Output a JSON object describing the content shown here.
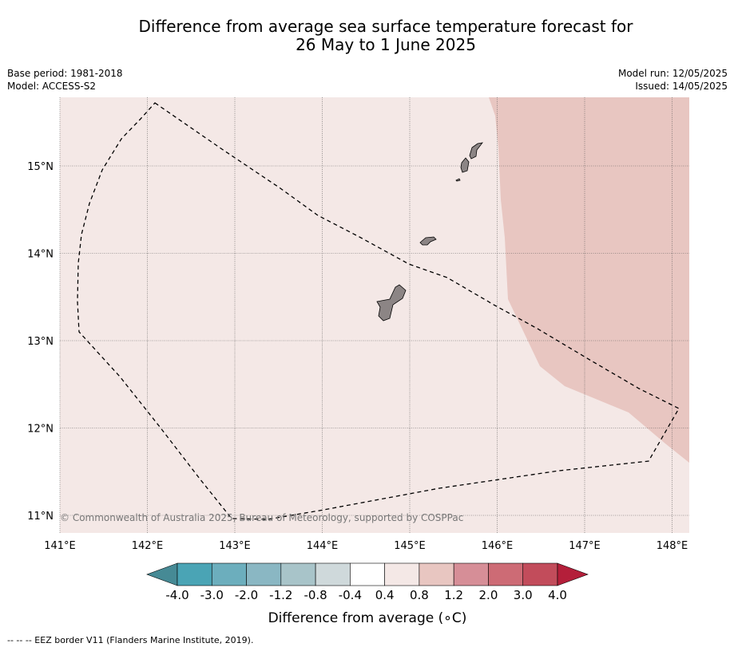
{
  "title_line1": "Difference from average sea surface temperature forecast for",
  "title_line2": "26 May to 1 June 2025",
  "meta_left": {
    "base_period": "Base period: 1981-2018",
    "model": "Model: ACCESS-S2"
  },
  "meta_right": {
    "model_run": "Model run: 12/05/2025",
    "issued": "Issued: 14/05/2025"
  },
  "map": {
    "lon_range": [
      141,
      148.2
    ],
    "lat_range": [
      10.8,
      15.8
    ],
    "lon_ticks": [
      141,
      142,
      143,
      144,
      145,
      146,
      147,
      148
    ],
    "lon_labels": [
      "141°E",
      "142°E",
      "143°E",
      "144°E",
      "145°E",
      "146°E",
      "147°E",
      "148°E"
    ],
    "lat_ticks": [
      15,
      14,
      13,
      12,
      11
    ],
    "lat_labels": [
      "15°N",
      "14°N",
      "13°N",
      "12°N",
      "11°N"
    ],
    "background_color": "#f4e8e6",
    "warm_region_color": "#e8c6c1",
    "land_color": "#8c8585",
    "gridlines": true,
    "copyright": "© Commonwealth of Australia 2025, Bureau of Meteorology, supported by COSPPac"
  },
  "colorbar": {
    "colors": [
      "#468a95",
      "#4aa4b5",
      "#6caebd",
      "#8ab7c3",
      "#a8c4c9",
      "#cfd9db",
      "#ffffff",
      "#f4e8e6",
      "#e8c6c1",
      "#d68e97",
      "#cd6b75",
      "#c24c5b",
      "#b41f3a"
    ],
    "labels": [
      "-4.0",
      "-3.0",
      "-2.0",
      "-1.2",
      "-0.8",
      "-0.4",
      "0.4",
      "0.8",
      "1.2",
      "2.0",
      "3.0",
      "4.0"
    ],
    "label": "Difference from average (∘C)"
  },
  "footer": "-- -- -- EEZ border V11 (Flanders Marine Institute, 2019)."
}
